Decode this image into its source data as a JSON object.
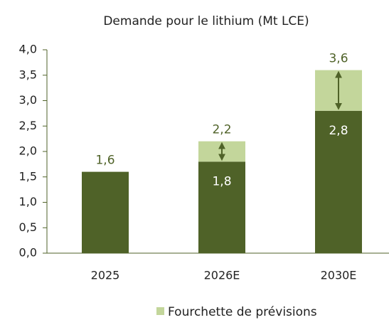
{
  "chart_data": {
    "type": "stacked_bar",
    "title": "Demande pour le lithium (Mt LCE)",
    "categories": [
      "2025",
      "2026E",
      "2030E"
    ],
    "series": [
      {
        "color": "#4f6228",
        "values": [
          1.6,
          1.8,
          2.8
        ],
        "value_labels": [
          "1,6",
          "1,8",
          "2,8"
        ]
      },
      {
        "name": "Fourchette de prévisions",
        "color": "#c3d69b",
        "values": [
          null,
          0.4,
          0.8
        ]
      }
    ],
    "totals": {
      "values": [
        null,
        2.2,
        3.6
      ],
      "value_labels": [
        null,
        "2,2",
        "3,6"
      ]
    },
    "ylim": [
      0,
      4
    ],
    "yticks": [
      {
        "value": 0,
        "label": "0,0"
      },
      {
        "value": 0.5,
        "label": "0,5"
      },
      {
        "value": 1,
        "label": "1,0"
      },
      {
        "value": 1.5,
        "label": "1,5"
      },
      {
        "value": 2,
        "label": "2,0"
      },
      {
        "value": 2.5,
        "label": "2,5"
      },
      {
        "value": 3,
        "label": "3,0"
      },
      {
        "value": 3.5,
        "label": "3,5"
      },
      {
        "value": 4,
        "label": "4,0"
      }
    ],
    "legend": "bottom"
  }
}
